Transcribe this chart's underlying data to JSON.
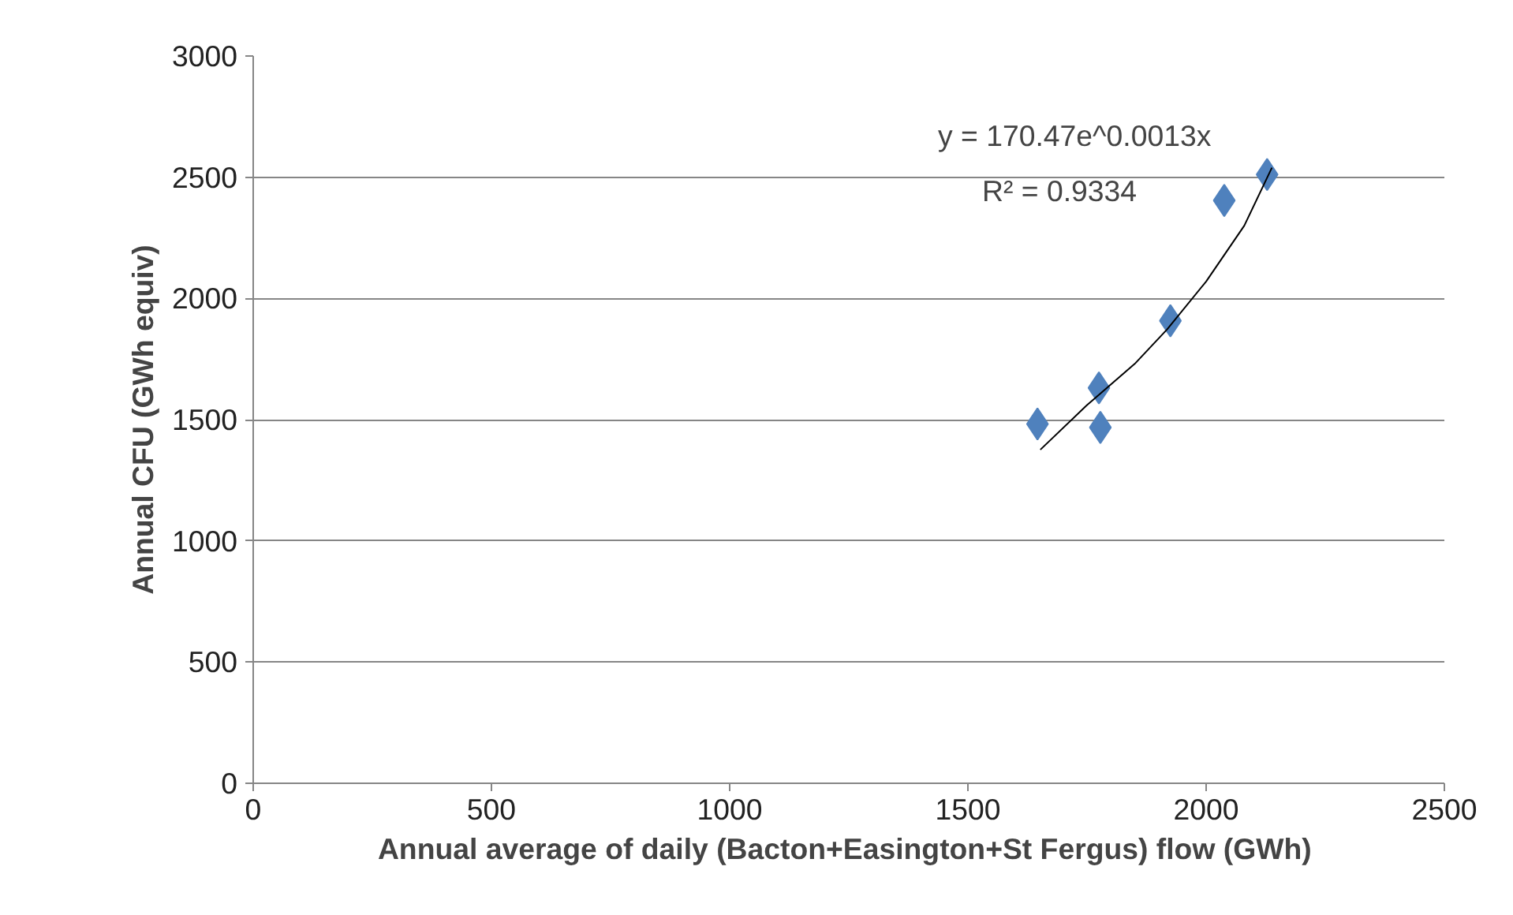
{
  "chart_data": {
    "type": "scatter",
    "xlabel": "Annual average of daily (Bacton+Easington+St  Fergus) flow (GWh)",
    "ylabel": "Annual CFU (GWh equiv)",
    "xlim": [
      0,
      2500
    ],
    "xticks": [
      0,
      500,
      1000,
      1500,
      2000,
      2500
    ],
    "ylim": [
      0,
      3000
    ],
    "yticks": [
      0,
      500,
      1000,
      1500,
      2000,
      2500,
      3000
    ],
    "grid": "y",
    "marker": "diamond",
    "series": [
      {
        "color": "#4f81bd",
        "x": [
          1646,
          1775,
          1778,
          1925,
          2038,
          2128
        ],
        "values": [
          1482,
          1631,
          1468,
          1908,
          2404,
          2511
        ]
      },
      {
        "type": "line",
        "marker": "none",
        "color": "#000000",
        "x": [
          1652,
          1750,
          1850,
          1918,
          2000,
          2080,
          2138
        ],
        "values": [
          1376,
          1560,
          1730,
          1872,
          2070,
          2300,
          2539
        ]
      }
    ],
    "annotations": [
      "y = 170.47e^0.0013x",
      "R² = 0.9334"
    ]
  }
}
